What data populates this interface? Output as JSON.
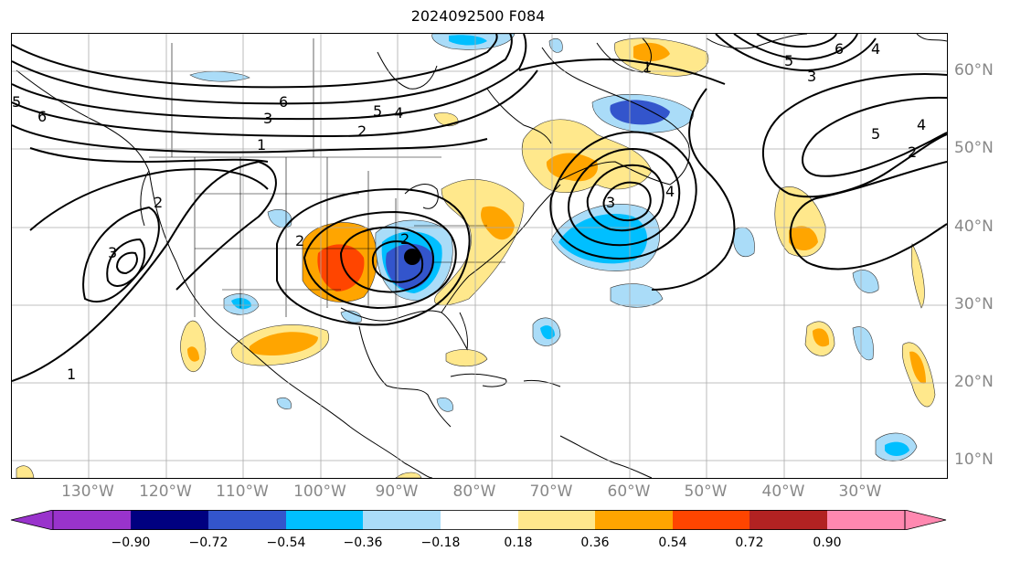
{
  "title": "2024092500 F084",
  "lon_labels": [
    "130°W",
    "120°W",
    "110°W",
    "100°W",
    "90°W",
    "80°W",
    "70°W",
    "60°W",
    "50°W",
    "40°W",
    "30°W"
  ],
  "lat_labels": [
    "60°N",
    "50°N",
    "40°N",
    "30°N",
    "20°N",
    "10°N"
  ],
  "colorbar": {
    "ticks": [
      "−0.90",
      "−0.72",
      "−0.54",
      "−0.36",
      "−0.18",
      "0.18",
      "0.36",
      "0.54",
      "0.72",
      "0.90"
    ],
    "colors": [
      "#9933cc",
      "#000080",
      "#3355cc",
      "#00bfff",
      "#aadcf8",
      "#ffffff",
      "#ffe88c",
      "#ffa500",
      "#ff4500",
      "#b22222",
      "#ff88b0"
    ]
  },
  "contour_labels": [
    "1",
    "2",
    "3",
    "4",
    "5",
    "6"
  ],
  "colors": {
    "positive_fill": "#ffa500",
    "negative_fill": "#00bfff",
    "contour": "#000000",
    "gridline": "#aaaaaa"
  }
}
